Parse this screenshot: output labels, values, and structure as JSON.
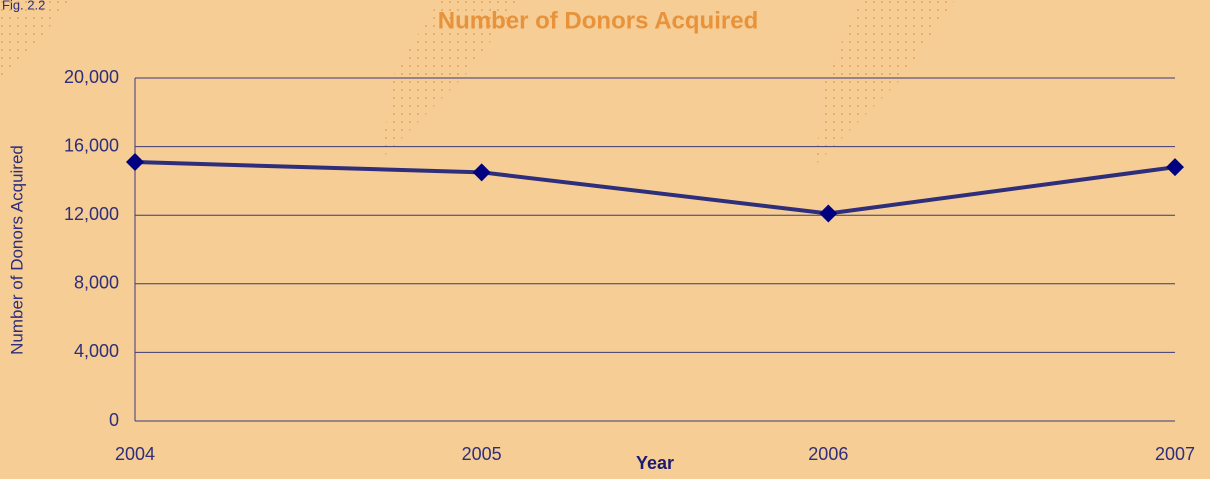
{
  "chart_data": {
    "type": "line",
    "title": "Number of Donors Acquired",
    "figure_label": "Fig. 2.2",
    "x_label": "Year",
    "y_label": "Number of Donors Acquired",
    "categories": [
      "2004",
      "2005",
      "2006",
      "2007"
    ],
    "series": [
      {
        "name": "Number of Donors Acquired",
        "color": "#2e2e7a",
        "marker_color": "#000080",
        "values": [
          15100,
          14500,
          12100,
          14800
        ]
      }
    ],
    "ylim": [
      0,
      20000
    ],
    "yticks": [
      0,
      {
        "value": 4000,
        "label": "4,000"
      },
      {
        "value": 8000,
        "label": "8,000"
      },
      {
        "value": 12000,
        "label": "12,000"
      },
      {
        "value": 16000,
        "label": "16,000"
      },
      {
        "value": 20000,
        "label": "20,000"
      }
    ],
    "grid": true
  }
}
